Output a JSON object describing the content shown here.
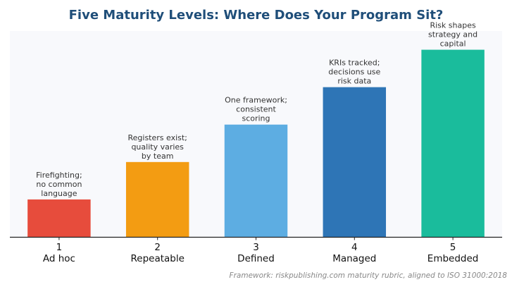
{
  "chart_data": {
    "type": "bar",
    "title": "Five Maturity Levels: Where Does Your Program Sit?",
    "categories": [
      {
        "number": "1",
        "name": "Ad hoc"
      },
      {
        "number": "2",
        "name": "Repeatable"
      },
      {
        "number": "3",
        "name": "Defined"
      },
      {
        "number": "4",
        "name": "Managed"
      },
      {
        "number": "5",
        "name": "Embedded"
      }
    ],
    "values": [
      1,
      2,
      3,
      4,
      5
    ],
    "ylim": [
      0,
      5.5
    ],
    "annotations": [
      [
        "Firefighting;",
        "no common",
        "language"
      ],
      [
        "Registers exist;",
        "quality varies",
        "by team"
      ],
      [
        "One framework;",
        "consistent",
        "scoring"
      ],
      [
        "KRIs tracked;",
        "decisions use",
        "risk data"
      ],
      [
        "Risk shapes",
        "strategy and",
        "capital"
      ]
    ],
    "colors": [
      "#e74c3c",
      "#f39c12",
      "#5dade2",
      "#2e75b6",
      "#1abc9c"
    ],
    "plot_background": "#f8f9fc",
    "grid": false,
    "source": "Framework: riskpublishing.com maturity rubric, aligned to ISO 31000:2018"
  }
}
